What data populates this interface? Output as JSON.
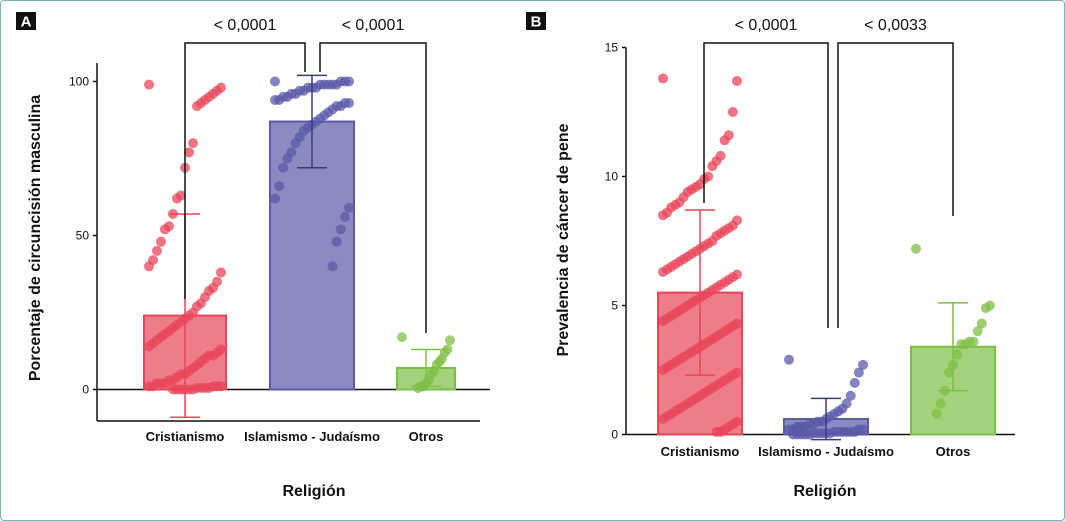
{
  "chart_data": [
    {
      "type": "bar",
      "panel_label": "A",
      "xlabel": "Religión",
      "ylabel": "Porcentaje de circuncisión masculina",
      "ylim": [
        -10,
        106
      ],
      "yticks": [
        "0",
        "50",
        "100"
      ],
      "categories": [
        "Cristianismo",
        "Islamismo - Judaísmo",
        "Otros"
      ],
      "values": [
        24,
        87,
        7
      ],
      "error": [
        33,
        15,
        6
      ],
      "colors": [
        "#e8455a",
        "#5a5aa8",
        "#7dbf44"
      ],
      "points": [
        [
          99,
          98,
          97,
          96,
          95,
          94,
          93,
          92,
          80,
          77,
          72,
          63,
          62,
          57,
          53,
          52,
          48,
          45,
          42,
          40,
          38,
          35,
          33,
          32,
          30,
          28,
          27,
          25,
          24,
          23,
          22,
          21,
          20,
          19,
          18,
          17,
          16,
          15,
          14,
          13,
          12,
          11,
          11,
          10,
          9,
          8,
          7,
          6,
          5,
          5,
          4,
          3,
          3,
          2,
          2,
          2,
          1,
          1,
          1,
          1,
          1,
          0.5,
          0.5,
          0.5,
          0.5,
          0,
          0,
          0,
          0,
          0,
          0
        ],
        [
          100,
          100,
          100,
          100,
          99,
          99,
          99,
          99,
          99,
          98,
          98,
          98,
          97,
          97,
          96,
          96,
          95,
          95,
          94,
          94,
          93,
          93,
          92,
          92,
          91,
          90,
          89,
          88,
          87,
          86,
          85,
          84,
          82,
          80,
          77,
          75,
          72,
          66,
          62,
          59,
          56,
          52,
          48,
          40
        ],
        [
          17,
          16,
          13,
          12,
          10,
          9,
          8,
          6,
          5,
          3,
          2,
          1,
          1,
          0.5
        ]
      ],
      "annotations": [
        {
          "from": 0,
          "to": 1,
          "text": "< 0,0001"
        },
        {
          "from": 1,
          "to": 2,
          "text": "< 0,0001"
        }
      ]
    },
    {
      "type": "bar",
      "panel_label": "B",
      "xlabel": "Religión",
      "ylabel": "Prevalencia de cáncer de pene",
      "ylim": [
        0,
        15
      ],
      "yticks": [
        "0",
        "5",
        "10",
        "15"
      ],
      "categories": [
        "Cristianismo",
        "Islamismo - Judaísmo",
        "Otros"
      ],
      "values": [
        5.5,
        0.6,
        3.4
      ],
      "error": [
        3.2,
        0.8,
        1.7
      ],
      "colors": [
        "#e8455a",
        "#5a5aa8",
        "#7dbf44"
      ],
      "points": [
        [
          13.8,
          13.7,
          12.5,
          11.6,
          11.4,
          10.8,
          10.6,
          10.4,
          10.0,
          9.9,
          9.7,
          9.6,
          9.5,
          9.4,
          9.2,
          9.0,
          8.9,
          8.8,
          8.6,
          8.5,
          8.3,
          8.1,
          8.0,
          7.9,
          7.8,
          7.7,
          7.5,
          7.4,
          7.3,
          7.2,
          7.1,
          7.0,
          6.9,
          6.8,
          6.7,
          6.6,
          6.5,
          6.4,
          6.3,
          6.2,
          6.1,
          6.0,
          5.9,
          5.8,
          5.7,
          5.6,
          5.5,
          5.4,
          5.3,
          5.2,
          5.1,
          5.0,
          4.9,
          4.8,
          4.7,
          4.6,
          4.5,
          4.4,
          4.3,
          4.2,
          4.1,
          4.0,
          3.9,
          3.8,
          3.7,
          3.6,
          3.5,
          3.4,
          3.3,
          3.2,
          3.1,
          3.0,
          2.9,
          2.8,
          2.7,
          2.6,
          2.5,
          2.4,
          2.3,
          2.2,
          2.1,
          2.0,
          1.9,
          1.8,
          1.7,
          1.6,
          1.5,
          1.4,
          1.3,
          1.2,
          1.1,
          1.0,
          0.9,
          0.8,
          0.7,
          0.6,
          0.5,
          0.4,
          0.3,
          0.2,
          0.1,
          0.1
        ],
        [
          2.9,
          2.7,
          2.4,
          2.0,
          1.5,
          1.2,
          1.0,
          0.9,
          0.8,
          0.7,
          0.6,
          0.5,
          0.5,
          0.4,
          0.4,
          0.3,
          0.3,
          0.3,
          0.2,
          0.2,
          0.2,
          0.2,
          0.1,
          0.1,
          0.1,
          0.1,
          0.1,
          0.1,
          0.05,
          0.05,
          0.05,
          0.05,
          0.05,
          0,
          0,
          0,
          0,
          0
        ],
        [
          7.2,
          5.0,
          4.9,
          4.3,
          4.0,
          3.6,
          3.6,
          3.5,
          3.5,
          3.1,
          2.7,
          2.4,
          1.7,
          1.2,
          0.8
        ]
      ],
      "annotations": [
        {
          "from": 0,
          "to": 1,
          "text": "< 0,0001"
        },
        {
          "from": 1,
          "to": 2,
          "text": "< 0,0033"
        }
      ]
    }
  ]
}
